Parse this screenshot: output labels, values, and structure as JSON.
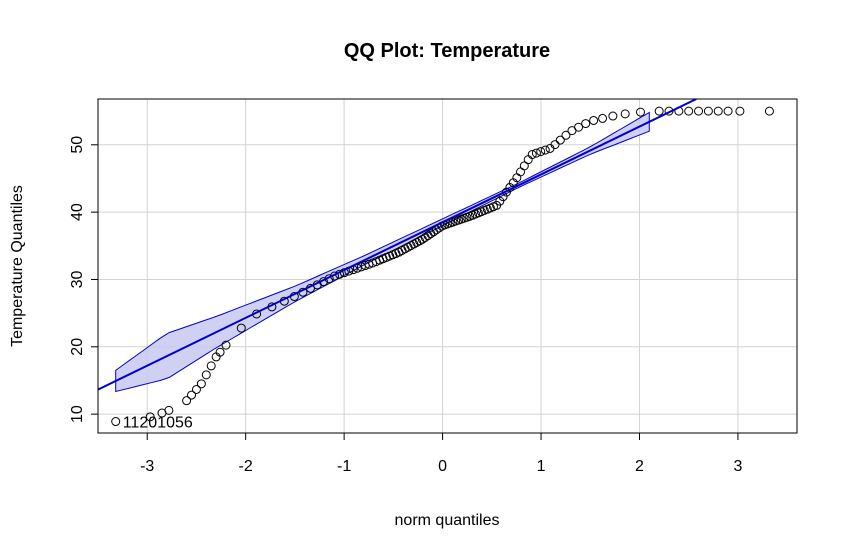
{
  "chart_data": {
    "type": "scatter",
    "title": "QQ Plot: Temperature",
    "xlabel": "norm quantiles",
    "ylabel": "Temperature Quantiles",
    "xlim": [
      -3.5,
      3.6
    ],
    "ylim": [
      7.2,
      56.8
    ],
    "xticks": [
      -3,
      -2,
      -1,
      0,
      1,
      2,
      3
    ],
    "yticks": [
      10,
      20,
      30,
      40,
      50
    ],
    "grid": true,
    "reference_line": {
      "slope": 7.1,
      "intercept": 38.5,
      "color": "#0000cc"
    },
    "confidence_band_color": "#c8c8f0",
    "point_color": "#000000",
    "annotations": [
      {
        "text": "1120",
        "x": -3.32,
        "y": 8.9
      },
      {
        "text": "1056",
        "x": -2.97,
        "y": 8.9
      }
    ],
    "quantile_curve": [
      [
        -3.32,
        8.9
      ],
      [
        -2.97,
        9.6
      ],
      [
        -2.8,
        10.4
      ],
      [
        -2.6,
        12.0
      ],
      [
        -2.45,
        14.5
      ],
      [
        -2.3,
        18.5
      ],
      [
        -2.1,
        22.0
      ],
      [
        -1.9,
        24.8
      ],
      [
        -1.5,
        27.5
      ],
      [
        -1.1,
        30.5
      ],
      [
        -0.7,
        32.5
      ],
      [
        -0.45,
        34.0
      ],
      [
        -0.2,
        36.0
      ],
      [
        0.0,
        38.0
      ],
      [
        0.3,
        39.5
      ],
      [
        0.55,
        41.0
      ],
      [
        0.75,
        45.0
      ],
      [
        0.9,
        48.5
      ],
      [
        1.1,
        49.5
      ],
      [
        1.3,
        52.0
      ],
      [
        1.5,
        53.5
      ],
      [
        1.8,
        54.5
      ],
      [
        2.1,
        55.0
      ],
      [
        3.02,
        55.0
      ],
      [
        3.32,
        55.0
      ]
    ],
    "band_knots": [
      [
        -3.32,
        16.5
      ],
      [
        -2.8,
        22.0
      ],
      [
        -2.3,
        24.5
      ],
      [
        -1.5,
        29.0
      ],
      [
        -0.8,
        33.5
      ],
      [
        0.0,
        39.0
      ],
      [
        0.8,
        44.5
      ],
      [
        1.5,
        49.7
      ],
      [
        2.1,
        54.8
      ]
    ]
  }
}
